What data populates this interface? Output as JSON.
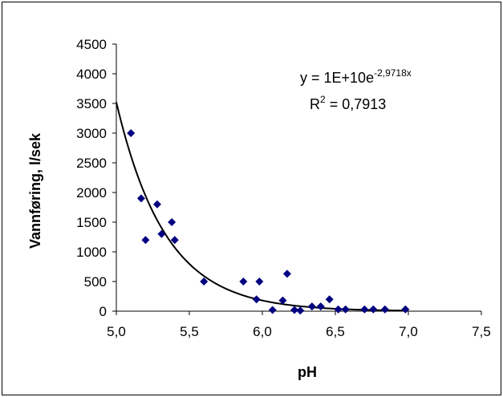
{
  "chart_data": {
    "type": "scatter",
    "xlabel": "pH",
    "ylabel": "Vannføring, l/sek",
    "xlim": [
      5.0,
      7.5
    ],
    "ylim": [
      0,
      4500
    ],
    "x_ticks": [
      "5,0",
      "5,5",
      "6,0",
      "6,5",
      "7,0",
      "7,5"
    ],
    "y_ticks": [
      "0",
      "500",
      "1000",
      "1500",
      "2000",
      "2500",
      "3000",
      "3500",
      "4000",
      "4500"
    ],
    "grid": false,
    "points": [
      {
        "x": 5.1,
        "y": 3000
      },
      {
        "x": 5.17,
        "y": 1900
      },
      {
        "x": 5.2,
        "y": 1200
      },
      {
        "x": 5.28,
        "y": 1800
      },
      {
        "x": 5.31,
        "y": 1300
      },
      {
        "x": 5.38,
        "y": 1500
      },
      {
        "x": 5.4,
        "y": 1200
      },
      {
        "x": 5.6,
        "y": 500
      },
      {
        "x": 5.87,
        "y": 500
      },
      {
        "x": 5.96,
        "y": 200
      },
      {
        "x": 5.98,
        "y": 500
      },
      {
        "x": 6.07,
        "y": 20
      },
      {
        "x": 6.14,
        "y": 180
      },
      {
        "x": 6.17,
        "y": 630
      },
      {
        "x": 6.22,
        "y": 20
      },
      {
        "x": 6.26,
        "y": 10
      },
      {
        "x": 6.34,
        "y": 80
      },
      {
        "x": 6.4,
        "y": 80
      },
      {
        "x": 6.46,
        "y": 200
      },
      {
        "x": 6.52,
        "y": 30
      },
      {
        "x": 6.57,
        "y": 30
      },
      {
        "x": 6.7,
        "y": 30
      },
      {
        "x": 6.76,
        "y": 30
      },
      {
        "x": 6.84,
        "y": 30
      },
      {
        "x": 6.98,
        "y": 30
      }
    ],
    "trendline": {
      "type": "exponential",
      "a": 10000000000.0,
      "b": -2.9718,
      "x_range": [
        5.0,
        7.0
      ],
      "equation": "y = 1E+10e",
      "equation_exponent": "-2,9718x",
      "r2_label": "R",
      "r2_exponent": "2",
      "r2_value": " = 0,7913"
    },
    "colors": {
      "marker": "#000080",
      "trendline": "#000000"
    }
  }
}
